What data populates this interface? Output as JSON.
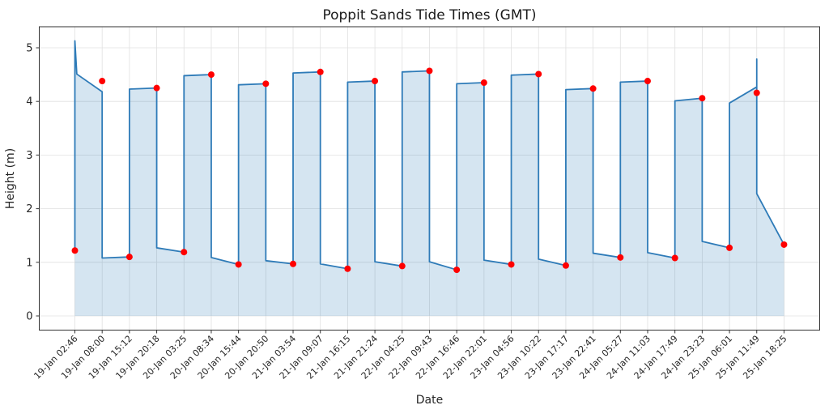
{
  "chart_data": {
    "type": "line",
    "title": "Poppit Sands Tide Times (GMT)",
    "xlabel": "Date",
    "ylabel": "Height (m)",
    "yticks": [
      0,
      1,
      2,
      3,
      4,
      5
    ],
    "ylim": [
      -0.26,
      5.39
    ],
    "xlim_categories": [
      -1.3,
      27.3
    ],
    "grid": true,
    "legend": false,
    "marker_style": "red-dot",
    "events": [
      {
        "label": "19-Jan 02:46",
        "height": 1.22
      },
      {
        "label": "19-Jan 08:00",
        "height": 4.38
      },
      {
        "label": "19-Jan 15:12",
        "height": 1.1
      },
      {
        "label": "19-Jan 20:18",
        "height": 4.25
      },
      {
        "label": "20-Jan 03:25",
        "height": 1.19
      },
      {
        "label": "20-Jan 08:34",
        "height": 4.5
      },
      {
        "label": "20-Jan 15:44",
        "height": 0.96
      },
      {
        "label": "20-Jan 20:50",
        "height": 4.33
      },
      {
        "label": "21-Jan 03:54",
        "height": 0.97
      },
      {
        "label": "21-Jan 09:07",
        "height": 4.55
      },
      {
        "label": "21-Jan 16:15",
        "height": 0.88
      },
      {
        "label": "21-Jan 21:24",
        "height": 4.38
      },
      {
        "label": "22-Jan 04:25",
        "height": 0.93
      },
      {
        "label": "22-Jan 09:43",
        "height": 4.57
      },
      {
        "label": "22-Jan 16:46",
        "height": 0.86
      },
      {
        "label": "22-Jan 22:01",
        "height": 4.35
      },
      {
        "label": "23-Jan 04:56",
        "height": 0.96
      },
      {
        "label": "23-Jan 10:22",
        "height": 4.51
      },
      {
        "label": "23-Jan 17:17",
        "height": 0.94
      },
      {
        "label": "23-Jan 22:41",
        "height": 4.24
      },
      {
        "label": "24-Jan 05:27",
        "height": 1.09
      },
      {
        "label": "24-Jan 11:03",
        "height": 4.38
      },
      {
        "label": "24-Jan 17:49",
        "height": 1.08
      },
      {
        "label": "24-Jan 23:23",
        "height": 4.06
      },
      {
        "label": "25-Jan 06:01",
        "height": 1.27
      },
      {
        "label": "25-Jan 11:49",
        "height": 4.16
      },
      {
        "label": "25-Jan 18:25",
        "height": 1.33
      }
    ],
    "line_path": [
      [
        0,
        1.22
      ],
      [
        0,
        5.13
      ],
      [
        0.07,
        4.51
      ],
      [
        1,
        4.18
      ],
      [
        1,
        1.08
      ],
      [
        2,
        1.1
      ],
      [
        2,
        4.23
      ],
      [
        3,
        4.25
      ],
      [
        3,
        1.27
      ],
      [
        4,
        1.19
      ],
      [
        4,
        4.48
      ],
      [
        5,
        4.5
      ],
      [
        5,
        1.09
      ],
      [
        6,
        0.96
      ],
      [
        6,
        4.31
      ],
      [
        7,
        4.33
      ],
      [
        7,
        1.03
      ],
      [
        8,
        0.97
      ],
      [
        8,
        4.53
      ],
      [
        9,
        4.55
      ],
      [
        9,
        0.97
      ],
      [
        10,
        0.88
      ],
      [
        10,
        4.36
      ],
      [
        11,
        4.38
      ],
      [
        11,
        1.01
      ],
      [
        12,
        0.93
      ],
      [
        12,
        4.55
      ],
      [
        13,
        4.57
      ],
      [
        13,
        1.01
      ],
      [
        14,
        0.86
      ],
      [
        14,
        4.33
      ],
      [
        15,
        4.35
      ],
      [
        15,
        1.04
      ],
      [
        16,
        0.96
      ],
      [
        16,
        4.49
      ],
      [
        17,
        4.51
      ],
      [
        17,
        1.06
      ],
      [
        18,
        0.94
      ],
      [
        18,
        4.22
      ],
      [
        19,
        4.24
      ],
      [
        19,
        1.17
      ],
      [
        20,
        1.09
      ],
      [
        20,
        4.36
      ],
      [
        21,
        4.38
      ],
      [
        21,
        1.18
      ],
      [
        22,
        1.08
      ],
      [
        22,
        4.01
      ],
      [
        23,
        4.06
      ],
      [
        23,
        1.39
      ],
      [
        24,
        1.27
      ],
      [
        24,
        3.97
      ],
      [
        25,
        4.27
      ],
      [
        25,
        4.79
      ],
      [
        25,
        2.28
      ],
      [
        26,
        1.33
      ]
    ],
    "colors": {
      "line": "#2e7bb8",
      "fill": "#2e7bb8",
      "fill_opacity": 0.2,
      "marker": "#ff0000",
      "grid": "#e0e0e0",
      "spine": "#333333",
      "tick_text": "#262626",
      "title_text": "#1a1a1a"
    }
  }
}
